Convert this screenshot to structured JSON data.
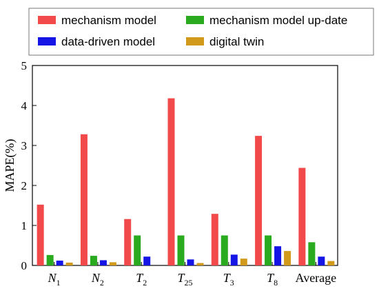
{
  "chart_data": {
    "type": "bar",
    "ylabel": "MAPE(%)",
    "xlabel": "",
    "ylim": [
      0,
      5
    ],
    "yticks": [
      "0",
      "1",
      "2",
      "3",
      "4",
      "5"
    ],
    "categories": [
      {
        "base": "N",
        "sub": "1"
      },
      {
        "base": "N",
        "sub": "2"
      },
      {
        "base": "T",
        "sub": "2"
      },
      {
        "base": "T",
        "sub": "25"
      },
      {
        "base": "T",
        "sub": "3"
      },
      {
        "base": "T",
        "sub": "8"
      },
      {
        "base": "Average",
        "sub": ""
      }
    ],
    "legend_position": "top",
    "series": [
      {
        "name": "mechanism model",
        "color": "#f24a4a",
        "values": [
          1.52,
          3.28,
          1.16,
          4.18,
          1.29,
          3.24,
          2.44
        ]
      },
      {
        "name": "mechanism model up-date",
        "color": "#2aaa1e",
        "values": [
          0.26,
          0.24,
          0.75,
          0.75,
          0.75,
          0.75,
          0.58
        ]
      },
      {
        "name": "data-driven model",
        "color": "#1515e6",
        "values": [
          0.12,
          0.13,
          0.22,
          0.15,
          0.27,
          0.48,
          0.22
        ]
      },
      {
        "name": "digital twin",
        "color": "#d19a1a",
        "values": [
          0.07,
          0.08,
          0.0,
          0.06,
          0.17,
          0.36,
          0.11
        ]
      }
    ]
  }
}
